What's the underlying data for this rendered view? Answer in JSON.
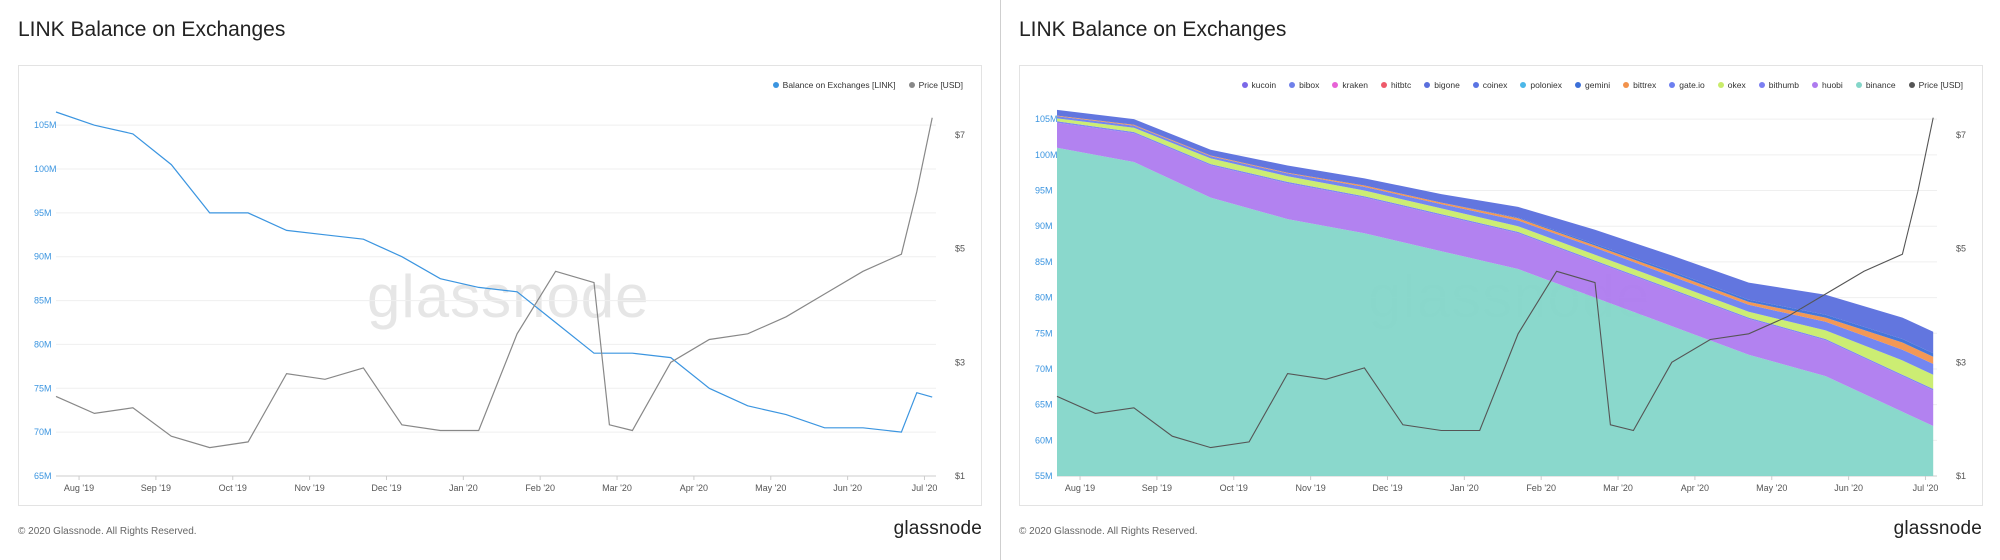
{
  "left": {
    "title": "LINK Balance on Exchanges",
    "footer_copy": "© 2020 Glassnode. All Rights Reserved.",
    "footer_brand": "glassnode",
    "watermark": "glassnode"
  },
  "right": {
    "title": "LINK Balance on Exchanges",
    "footer_copy": "© 2020 Glassnode. All Rights Reserved.",
    "footer_brand": "glassnode",
    "watermark": "glassnode"
  },
  "colors": {
    "balance": "#3b95e0",
    "price": "#888888",
    "left_axis_text": "#3b95e0",
    "right_axis_text": "#555555",
    "grid": "#efefef"
  },
  "chart_data": [
    {
      "type": "line",
      "title": "LINK Balance on Exchanges",
      "xlabel": "",
      "ylabel": "",
      "x_ticks": [
        "Aug '19",
        "Sep '19",
        "Oct '19",
        "Nov '19",
        "Dec '19",
        "Jan '20",
        "Feb '20",
        "Mar '20",
        "Apr '20",
        "May '20",
        "Jun '20",
        "Jul '20"
      ],
      "y_left_ticks": [
        "65M",
        "70M",
        "75M",
        "80M",
        "85M",
        "90M",
        "95M",
        "100M",
        "105M"
      ],
      "y_right_ticks": [
        "$1",
        "$3",
        "$5",
        "$7"
      ],
      "ylim_left": [
        65,
        106.5
      ],
      "ylim_right": [
        1,
        7.4
      ],
      "y_right_scale": "linear",
      "legend_position": "top-right",
      "grid": true,
      "series": [
        {
          "name": "Balance on Exchanges [LINK]",
          "axis": "left",
          "color": "#3b95e0",
          "x": [
            0,
            0.5,
            1,
            1.5,
            2,
            2.5,
            3,
            3.5,
            4,
            4.5,
            5,
            5.5,
            6,
            6.5,
            7,
            7.5,
            8,
            8.5,
            9,
            9.5,
            10,
            10.5,
            11,
            11.2,
            11.4
          ],
          "values": [
            106.5,
            105.0,
            104.0,
            100.5,
            95.0,
            95.0,
            93.0,
            92.5,
            92.0,
            90.0,
            87.5,
            86.5,
            86.0,
            82.5,
            79.0,
            79.0,
            78.5,
            75.0,
            73.0,
            72.0,
            70.5,
            70.5,
            70.0,
            74.5,
            74.0
          ]
        },
        {
          "name": "Price [USD]",
          "axis": "right",
          "color": "#888888",
          "x": [
            0,
            0.5,
            1,
            1.5,
            2,
            2.5,
            3,
            3.5,
            4,
            4.5,
            5,
            5.5,
            6,
            6.5,
            7,
            7.2,
            7.5,
            8,
            8.5,
            9,
            9.5,
            10,
            10.5,
            11,
            11.2,
            11.4
          ],
          "values": [
            2.4,
            2.1,
            2.2,
            1.7,
            1.5,
            1.6,
            2.8,
            2.7,
            2.9,
            1.9,
            1.8,
            1.8,
            3.5,
            4.6,
            4.4,
            1.9,
            1.8,
            3.0,
            3.4,
            3.5,
            3.8,
            4.2,
            4.6,
            4.9,
            6.0,
            7.3
          ]
        }
      ]
    },
    {
      "type": "area",
      "title": "LINK Balance on Exchanges",
      "xlabel": "",
      "ylabel": "",
      "stacked": true,
      "x_ticks": [
        "Aug '19",
        "Sep '19",
        "Oct '19",
        "Nov '19",
        "Dec '19",
        "Jan '20",
        "Feb '20",
        "Mar '20",
        "Apr '20",
        "May '20",
        "Jun '20",
        "Jul '20"
      ],
      "y_left_ticks": [
        "55M",
        "60M",
        "65M",
        "70M",
        "75M",
        "80M",
        "85M",
        "90M",
        "95M",
        "100M",
        "105M"
      ],
      "y_right_ticks": [
        "$1",
        "$3",
        "$5",
        "$7"
      ],
      "ylim_left": [
        55,
        106
      ],
      "ylim_right": [
        1,
        7.4
      ],
      "y_right_scale": "linear",
      "legend_position": "top-right",
      "grid": true,
      "x": [
        0,
        1,
        2,
        3,
        4,
        5,
        6,
        7,
        8,
        9,
        10,
        11,
        11.4
      ],
      "series": [
        {
          "name": "binance",
          "color": "#84d6c9",
          "values": [
            101,
            99,
            94,
            91,
            89,
            86.5,
            84,
            80,
            76,
            72,
            69,
            64,
            62
          ]
        },
        {
          "name": "huobi",
          "color": "#ae7bef",
          "values": [
            3.5,
            4.0,
            4.5,
            5.0,
            5.0,
            5.0,
            5.0,
            5.0,
            5.0,
            5.0,
            5.0,
            5.0,
            5.0
          ]
        },
        {
          "name": "bithumb",
          "color": "#7b7ff2",
          "values": [
            0.2,
            0.2,
            0.2,
            0.2,
            0.2,
            0.2,
            0.2,
            0.2,
            0.2,
            0.2,
            0.2,
            0.2,
            0.2
          ]
        },
        {
          "name": "okex",
          "color": "#c9ec6b",
          "values": [
            0.4,
            0.6,
            0.8,
            0.8,
            0.8,
            0.8,
            0.8,
            0.8,
            0.8,
            0.8,
            1.2,
            2.0,
            2.0
          ]
        },
        {
          "name": "gate.io",
          "color": "#6c7ff0",
          "values": [
            0.3,
            0.3,
            0.3,
            0.4,
            0.5,
            0.6,
            0.8,
            1.0,
            1.0,
            1.0,
            1.2,
            1.5,
            1.5
          ]
        },
        {
          "name": "bittrex",
          "color": "#f2924c",
          "values": [
            0.1,
            0.1,
            0.1,
            0.1,
            0.2,
            0.2,
            0.3,
            0.3,
            0.4,
            0.4,
            0.6,
            1.0,
            1.0
          ]
        },
        {
          "name": "gemini",
          "color": "#3b6fd8",
          "values": [
            0,
            0,
            0,
            0,
            0,
            0,
            0.1,
            0.2,
            0.3,
            0.3,
            0.4,
            0.5,
            0.5
          ]
        },
        {
          "name": "poloniex",
          "color": "#4cb7e8",
          "values": [
            0,
            0,
            0,
            0,
            0,
            0,
            0,
            0,
            0,
            0,
            0,
            0,
            0
          ]
        },
        {
          "name": "coinex",
          "color": "#5a74e3",
          "values": [
            0,
            0,
            0,
            0,
            0,
            0,
            0,
            0,
            0,
            0,
            0,
            0,
            0
          ]
        },
        {
          "name": "bigone",
          "color": "#5a6fdd",
          "values": [
            0.8,
            0.8,
            0.8,
            1.0,
            1.0,
            1.2,
            1.5,
            2.0,
            2.2,
            2.4,
            2.8,
            3.0,
            3.0
          ]
        },
        {
          "name": "hitbtc",
          "color": "#ee5a6a",
          "values": [
            0,
            0,
            0,
            0,
            0,
            0,
            0,
            0,
            0,
            0,
            0,
            0,
            0
          ]
        },
        {
          "name": "kraken",
          "color": "#e762d6",
          "values": [
            0,
            0,
            0,
            0,
            0,
            0,
            0,
            0,
            0,
            0,
            0,
            0,
            0
          ]
        },
        {
          "name": "bibox",
          "color": "#6f80ea",
          "values": [
            0,
            0,
            0,
            0,
            0,
            0,
            0,
            0,
            0,
            0,
            0,
            0,
            0
          ]
        },
        {
          "name": "kucoin",
          "color": "#7b68e8",
          "values": [
            0,
            0,
            0,
            0,
            0,
            0,
            0,
            0,
            0,
            0,
            0,
            0,
            0
          ]
        }
      ],
      "legend_order": [
        "kucoin",
        "bibox",
        "kraken",
        "hitbtc",
        "bigone",
        "coinex",
        "poloniex",
        "gemini",
        "bittrex",
        "gate.io",
        "okex",
        "bithumb",
        "huobi",
        "binance",
        "Price [USD]"
      ],
      "price_series": {
        "name": "Price [USD]",
        "axis": "right",
        "color": "#555555",
        "x": [
          0,
          0.5,
          1,
          1.5,
          2,
          2.5,
          3,
          3.5,
          4,
          4.5,
          5,
          5.5,
          6,
          6.5,
          7,
          7.2,
          7.5,
          8,
          8.5,
          9,
          9.5,
          10,
          10.5,
          11,
          11.2,
          11.4
        ],
        "values": [
          2.4,
          2.1,
          2.2,
          1.7,
          1.5,
          1.6,
          2.8,
          2.7,
          2.9,
          1.9,
          1.8,
          1.8,
          3.5,
          4.6,
          4.4,
          1.9,
          1.8,
          3.0,
          3.4,
          3.5,
          3.8,
          4.2,
          4.6,
          4.9,
          6.0,
          7.3
        ]
      }
    }
  ]
}
